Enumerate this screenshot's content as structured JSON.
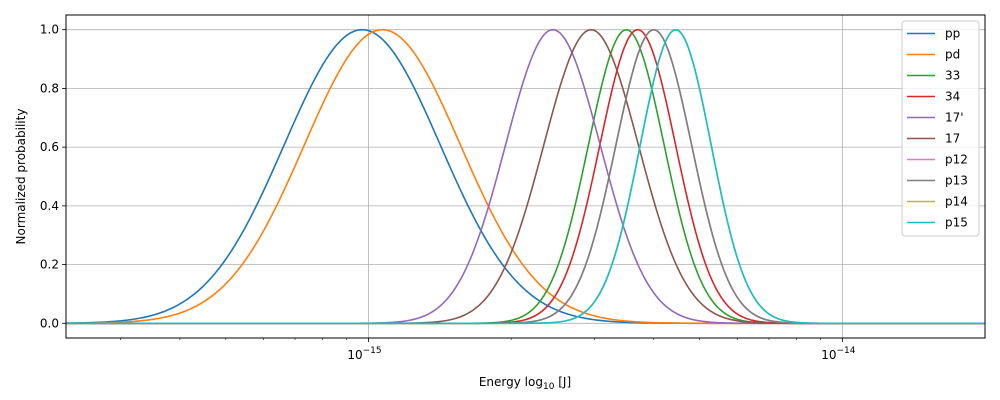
{
  "chart_data": {
    "type": "line",
    "title": "",
    "xlabel": "Energy log",
    "xlabel_sub": "10",
    "xlabel_unit": " [J]",
    "ylabel": "Normalized probability",
    "x_scale": "log",
    "xlim": [
      2.3e-16,
      2e-14
    ],
    "ylim": [
      -0.05,
      1.05
    ],
    "grid": true,
    "legend": "top-right",
    "x_ticks": [
      {
        "value": 1e-15,
        "base": "10",
        "exp": "−15"
      },
      {
        "value": 1e-14,
        "base": "10",
        "exp": "−14"
      }
    ],
    "y_ticks": [
      {
        "value": 0.0,
        "label": "0.0"
      },
      {
        "value": 0.2,
        "label": "0.2"
      },
      {
        "value": 0.4,
        "label": "0.4"
      },
      {
        "value": 0.6,
        "label": "0.6"
      },
      {
        "value": 0.8,
        "label": "0.8"
      },
      {
        "value": 1.0,
        "label": "1.0"
      }
    ],
    "series": [
      {
        "name": "pp",
        "color": "#1f77b4",
        "peak_energy": 9.7e-16,
        "log_width": 0.165
      },
      {
        "name": "pd",
        "color": "#ff7f0e",
        "peak_energy": 1.07e-15,
        "log_width": 0.165
      },
      {
        "name": "33",
        "color": "#2ca02c",
        "peak_energy": 3.5e-15,
        "log_width": 0.08
      },
      {
        "name": "34",
        "color": "#d62728",
        "peak_energy": 3.7e-15,
        "log_width": 0.08
      },
      {
        "name": "17'",
        "color": "#9467bd",
        "peak_energy": 2.45e-15,
        "log_width": 0.1
      },
      {
        "name": "17",
        "color": "#8c564b",
        "peak_energy": 2.95e-15,
        "log_width": 0.1
      },
      {
        "name": "p12",
        "color": "#e377c2",
        "peak_energy": 4e-15,
        "log_width": 0.08
      },
      {
        "name": "p13",
        "color": "#7f7f7f",
        "peak_energy": 4e-15,
        "log_width": 0.08
      },
      {
        "name": "p14",
        "color": "#bcbd22",
        "peak_energy": 4.45e-15,
        "log_width": 0.075
      },
      {
        "name": "p15",
        "color": "#17becf",
        "peak_energy": 4.45e-15,
        "log_width": 0.075
      }
    ]
  }
}
